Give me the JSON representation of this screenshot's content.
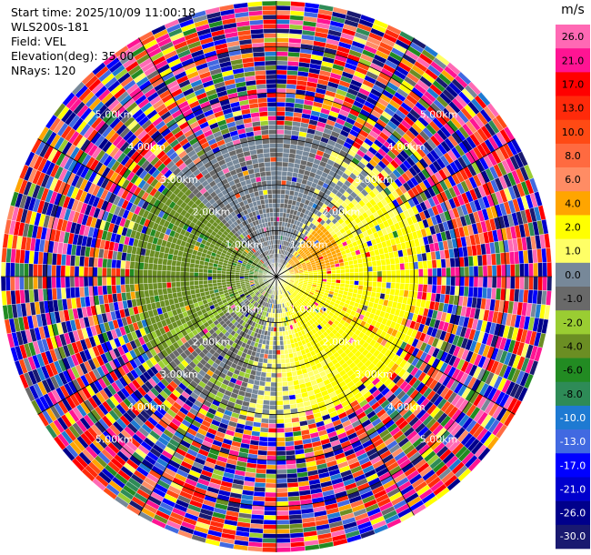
{
  "header": {
    "start_time": "Start time: 2025/10/09 11:00:18",
    "station": "WLS200s-181",
    "field": "Field: VEL",
    "elevation": "Elevation(deg): 35.00",
    "nrays": "NRays: 120"
  },
  "chart_data": {
    "type": "ppi",
    "field": "VEL",
    "unit": "m/s",
    "start_time": "2025/10/09 11:00:18",
    "elevation_deg": 35.0,
    "n_rays": 120,
    "max_range_km": 6.0,
    "ring_labels": [
      "1.00km",
      "2.00km",
      "3.00km",
      "4.00km",
      "5.00km"
    ],
    "ring_ranges_km": [
      1,
      2,
      3,
      4,
      5
    ],
    "colorbar": {
      "ticks": [
        "26.0",
        "21.0",
        "17.0",
        "13.0",
        "10.0",
        "8.0",
        "6.0",
        "4.0",
        "2.0",
        "1.0",
        "0.0",
        "-1.0",
        "-2.0",
        "-4.0",
        "-6.0",
        "-8.0",
        "-10.0",
        "-13.0",
        "-17.0",
        "-21.0",
        "-26.0",
        "-30.0"
      ],
      "bins": [
        {
          "lo": 26,
          "hi": 30,
          "color": "#ff69b4"
        },
        {
          "lo": 21,
          "hi": 26,
          "color": "#ff1493"
        },
        {
          "lo": 17,
          "hi": 21,
          "color": "#ff0000"
        },
        {
          "lo": 13,
          "hi": 17,
          "color": "#ff2a0a"
        },
        {
          "lo": 10,
          "hi": 13,
          "color": "#ff4a14"
        },
        {
          "lo": 8,
          "hi": 10,
          "color": "#ff6a40"
        },
        {
          "lo": 6,
          "hi": 8,
          "color": "#ff8c64"
        },
        {
          "lo": 4,
          "hi": 6,
          "color": "#ffa500"
        },
        {
          "lo": 2,
          "hi": 4,
          "color": "#ffff00"
        },
        {
          "lo": 1,
          "hi": 2,
          "color": "#ffff66"
        },
        {
          "lo": 0,
          "hi": 1,
          "color": "#778899"
        },
        {
          "lo": -1,
          "hi": 0,
          "color": "#696969"
        },
        {
          "lo": -2,
          "hi": -1,
          "color": "#9acd32"
        },
        {
          "lo": -4,
          "hi": -2,
          "color": "#6b8e23"
        },
        {
          "lo": -6,
          "hi": -4,
          "color": "#228b22"
        },
        {
          "lo": -8,
          "hi": -6,
          "color": "#2e8b57"
        },
        {
          "lo": -10,
          "hi": -8,
          "color": "#1e7ad2"
        },
        {
          "lo": -13,
          "hi": -10,
          "color": "#4169e1"
        },
        {
          "lo": -17,
          "hi": -13,
          "color": "#0000ff"
        },
        {
          "lo": -21,
          "hi": -17,
          "color": "#0000cd"
        },
        {
          "lo": -26,
          "hi": -21,
          "color": "#00008b"
        },
        {
          "lo": -30,
          "hi": -26,
          "color": "#191970"
        }
      ]
    },
    "pattern": {
      "near_field_core_km": 3.2,
      "positive_sector": "east and south (yellow, +2 to +6 m/s)",
      "negative_sector": "west (green, -2 to -8 m/s)",
      "near_zero_sector": "north and south-west (grey, -1 to +1 m/s)",
      "outer_field": "noisy, all velocities"
    }
  }
}
